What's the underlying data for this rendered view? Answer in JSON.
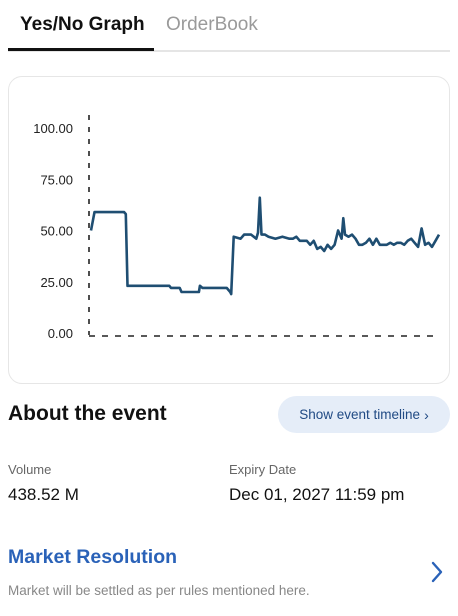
{
  "tabs": [
    {
      "label": "Yes/No Graph",
      "active": true
    },
    {
      "label": "OrderBook",
      "active": false
    }
  ],
  "chart_data": {
    "type": "line",
    "y_ticks": [
      "100.00",
      "75.00",
      "50.00",
      "25.00",
      "0.00"
    ],
    "ylim": [
      0,
      100
    ],
    "xlim": [
      0,
      100
    ],
    "line_color": "#1f4e72",
    "series": [
      {
        "x": [
          0,
          1,
          2,
          9.5,
          10,
          10.5,
          22,
          22.5,
          23,
          25.5,
          26,
          31,
          31.3,
          32,
          39,
          40,
          40.3,
          41,
          43,
          44,
          46,
          47.5,
          48,
          48.5,
          49,
          50,
          51,
          53,
          55,
          57,
          58,
          59,
          60,
          62,
          63,
          64,
          65,
          66,
          67,
          68,
          69,
          70,
          71,
          72,
          72.5,
          73,
          74,
          75,
          76,
          77,
          78,
          79,
          80,
          81,
          82,
          83,
          84,
          85,
          86,
          87,
          88,
          89,
          90,
          91,
          92,
          93,
          94,
          95,
          96,
          97,
          98,
          99,
          100
        ],
        "y": [
          50,
          59,
          59,
          59,
          58,
          23,
          23,
          23,
          22,
          22,
          20,
          20,
          23,
          22,
          22,
          20,
          19,
          47,
          46,
          48,
          48,
          46,
          49,
          66,
          48,
          48,
          47,
          46,
          47,
          46,
          46,
          47,
          45,
          45,
          43,
          45,
          41,
          42,
          40,
          43,
          41,
          43,
          50,
          46,
          56,
          48,
          47,
          48,
          46,
          43,
          43,
          44,
          46,
          43,
          46,
          43,
          43,
          43,
          44,
          43,
          44,
          44,
          43,
          45,
          46,
          44,
          42,
          51,
          43,
          44,
          42,
          45,
          48
        ]
      }
    ]
  },
  "about": {
    "title": "About the event",
    "timeline_button": "Show event timeline",
    "timeline_chevron": "›"
  },
  "stats": {
    "volume_label": "Volume",
    "volume_value": "438.52 M",
    "expiry_label": "Expiry Date",
    "expiry_value": "Dec 01, 2027 11:59 pm"
  },
  "resolution": {
    "title": "Market Resolution",
    "description": "Market will be settled as per rules mentioned here."
  },
  "icons": {
    "timeline_chevron": "chevron-right-icon",
    "resolution_chevron": "chevron-right-icon"
  },
  "colors": {
    "accent_blue": "#2a62b8",
    "button_bg": "#e5edf8",
    "chart_line": "#1f4e72"
  }
}
